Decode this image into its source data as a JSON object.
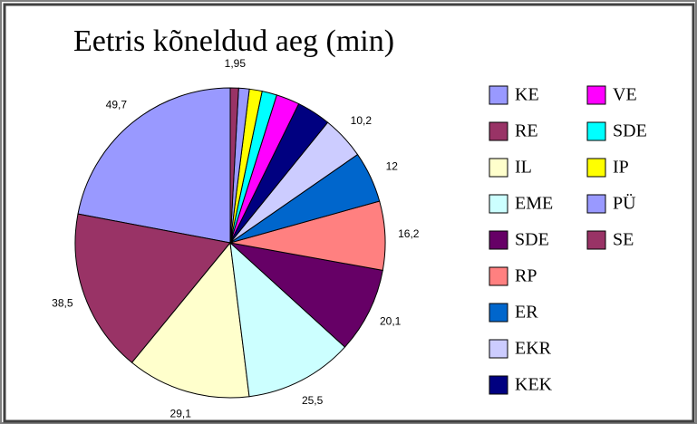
{
  "chart_data": {
    "type": "pie",
    "title": "Eetris kõneldud aeg (min)",
    "categories": [
      "KE",
      "RE",
      "IL",
      "EME",
      "SDE",
      "RP",
      "ER",
      "EKR",
      "KEK",
      "VE",
      "SDE",
      "IP",
      "PÜ",
      "SE"
    ],
    "values": [
      49.7,
      38.5,
      29.1,
      25.5,
      20.1,
      16.2,
      12,
      10.2,
      8,
      5.5,
      3.5,
      3,
      2.5,
      1.95
    ],
    "value_labels": [
      "49,7",
      "38,5",
      "29,1",
      "25,5",
      "20,1",
      "16,2",
      "12",
      "10,2",
      null,
      null,
      null,
      null,
      null,
      "1,95"
    ],
    "colors": [
      "#9999ff",
      "#993366",
      "#ffffcc",
      "#ccffff",
      "#660066",
      "#ff8080",
      "#0066cc",
      "#ccccff",
      "#000080",
      "#ff00ff",
      "#00ffff",
      "#ffff00",
      "#9999ff",
      "#993366"
    ]
  }
}
